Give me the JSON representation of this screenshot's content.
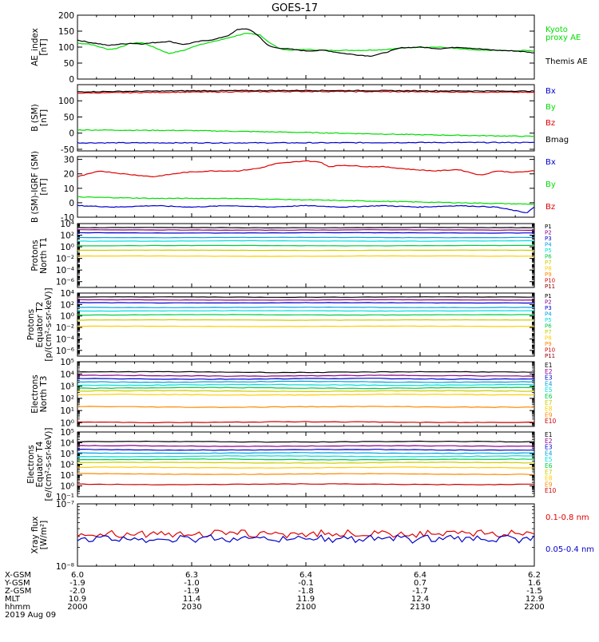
{
  "title": "GOES-17",
  "colors": {
    "black": "#000000",
    "red": "#e00000",
    "green": "#00dd00",
    "blue": "#0000cc",
    "bx": "#0000cc",
    "by": "#00dd00",
    "bz": "#e00000",
    "channels": [
      "#000000",
      "#8b008b",
      "#0000cc",
      "#00a0e0",
      "#00dddd",
      "#00cc44",
      "#cccc00",
      "#ffcc00",
      "#ff8800",
      "#cc0000",
      "#880000"
    ]
  },
  "chart_data": [
    {
      "id": "ae",
      "type": "line",
      "ylabel": [
        "AE_index",
        "[nT]"
      ],
      "ylim": [
        0,
        200
      ],
      "ticks": [
        0,
        50,
        100,
        150,
        200
      ],
      "tick_labels": [
        "0",
        "50",
        "100",
        "150",
        "200"
      ],
      "series": [
        {
          "name": "Kyoto proxy AE",
          "label_lines": [
            "Kyoto",
            "proxy AE"
          ],
          "color": "#00dd00",
          "x": [
            0,
            3,
            6,
            8,
            10,
            14,
            17,
            20,
            24,
            28,
            32,
            36,
            40,
            44,
            48,
            50,
            53,
            56,
            60,
            65,
            70,
            75,
            80,
            85,
            90,
            95,
            100,
            105,
            110,
            115,
            118,
            120
          ],
          "values": [
            112,
            110,
            100,
            93,
            95,
            112,
            114,
            100,
            80,
            90,
            108,
            118,
            130,
            143,
            138,
            118,
            95,
            90,
            93,
            90,
            90,
            90,
            92,
            97,
            100,
            100,
            95,
            90,
            90,
            88,
            90,
            88
          ]
        },
        {
          "name": "Themis AE",
          "label_lines": [
            "Themis AE"
          ],
          "color": "#000000",
          "x": [
            0,
            3,
            6,
            8,
            10,
            14,
            17,
            20,
            24,
            28,
            32,
            36,
            40,
            42,
            44,
            46,
            48,
            50,
            52,
            55,
            60,
            65,
            68,
            70,
            74,
            77,
            80,
            85,
            90,
            95,
            100,
            105,
            110,
            115,
            118,
            120
          ],
          "values": [
            122,
            115,
            110,
            105,
            108,
            112,
            110,
            114,
            118,
            108,
            118,
            124,
            138,
            155,
            158,
            150,
            130,
            105,
            98,
            95,
            88,
            90,
            84,
            80,
            75,
            72,
            80,
            98,
            100,
            95,
            100,
            95,
            90,
            88,
            85,
            82
          ]
        }
      ]
    },
    {
      "id": "b_sm",
      "type": "line",
      "ylabel": [
        "B (SM)",
        "[nT]"
      ],
      "ylim": [
        -55,
        150
      ],
      "ticks": [
        -50,
        0,
        50,
        100
      ],
      "tick_labels": [
        "-50",
        "0",
        "50",
        "100"
      ],
      "series": [
        {
          "name": "Bx",
          "color": "#0000cc",
          "x": [
            0,
            30,
            60,
            90,
            120
          ],
          "values": [
            -30,
            -30,
            -30,
            -29,
            -29
          ]
        },
        {
          "name": "By",
          "color": "#00dd00",
          "x": [
            0,
            30,
            60,
            90,
            120
          ],
          "values": [
            10,
            8,
            2,
            -5,
            -10
          ]
        },
        {
          "name": "Bz",
          "color": "#e00000",
          "x": [
            0,
            30,
            60,
            90,
            120
          ],
          "values": [
            124,
            127,
            129,
            128,
            126
          ]
        },
        {
          "name": "Bmag",
          "color": "#000000",
          "x": [
            0,
            30,
            60,
            90,
            120
          ],
          "values": [
            128,
            131,
            132,
            131,
            130
          ]
        }
      ]
    },
    {
      "id": "b_igrf",
      "type": "line",
      "ylabel": [
        "B (SM)-IGRF (SM)",
        "[nT]"
      ],
      "ylim": [
        -10,
        32
      ],
      "ticks": [
        -10,
        0,
        10,
        20,
        30
      ],
      "tick_labels": [
        "-10",
        "0",
        "10",
        "20",
        "30"
      ],
      "series": [
        {
          "name": "Bx",
          "color": "#0000cc",
          "x": [
            0,
            10,
            20,
            30,
            40,
            50,
            60,
            70,
            80,
            90,
            100,
            110,
            118,
            120
          ],
          "values": [
            -2,
            -3,
            -2,
            -3,
            -2,
            -3,
            -2,
            -3,
            -2,
            -3,
            -2,
            -3,
            -7,
            -3
          ]
        },
        {
          "name": "By",
          "color": "#00dd00",
          "x": [
            0,
            20,
            40,
            60,
            80,
            100,
            120
          ],
          "values": [
            4,
            3,
            3,
            2,
            1,
            0,
            -1
          ]
        },
        {
          "name": "Bz",
          "color": "#e00000",
          "x": [
            0,
            3,
            6,
            12,
            20,
            28,
            35,
            42,
            48,
            52,
            56,
            60,
            64,
            66,
            70,
            76,
            80,
            88,
            94,
            100,
            106,
            110,
            115,
            120
          ],
          "values": [
            18,
            20,
            22,
            20,
            18,
            21,
            22,
            22,
            24,
            27,
            28,
            29,
            28,
            25,
            26,
            25,
            25,
            23,
            22,
            23,
            19,
            22,
            21,
            22
          ]
        }
      ]
    },
    {
      "id": "protons_north",
      "type": "line",
      "log": true,
      "ylabel": [
        "Protons",
        "North T1"
      ],
      "ylim_exp": [
        -7,
        4
      ],
      "ticks_exp": [
        -6,
        -4,
        -2,
        0,
        2,
        4
      ],
      "tick_labels": [
        "10⁻⁶",
        "10⁻⁴",
        "10⁻²",
        "10⁰",
        "10²",
        "10⁴"
      ],
      "series": [
        {
          "name": "P1",
          "color": "#000000",
          "level_exp": 3.3
        },
        {
          "name": "P2",
          "color": "#8b008b",
          "level_exp": 2.9
        },
        {
          "name": "P3",
          "color": "#0000cc",
          "level_exp": 2.4
        },
        {
          "name": "P4",
          "color": "#00a0e0",
          "level_exp": 1.6
        },
        {
          "name": "P5",
          "color": "#00dddd",
          "level_exp": 1.0
        },
        {
          "name": "P6",
          "color": "#00cc44",
          "level_exp": 0.2
        },
        {
          "name": "P7",
          "color": "#cccc00",
          "level_exp": -0.6
        },
        {
          "name": "P8",
          "color": "#ffcc00",
          "level_exp": -1.6
        },
        {
          "name": "P9",
          "color": "#ff8800",
          "level_exp": -99
        },
        {
          "name": "P10",
          "color": "#cc0000",
          "level_exp": -99
        },
        {
          "name": "P11",
          "color": "#880000",
          "level_exp": -99
        }
      ]
    },
    {
      "id": "protons_equator",
      "type": "line",
      "log": true,
      "ylabel": [
        "Protons",
        "Equator T2",
        "[p/(cm²-s-sr-keV)]"
      ],
      "ylim_exp": [
        -7,
        4
      ],
      "ticks_exp": [
        -6,
        -4,
        -2,
        0,
        2,
        4
      ],
      "tick_labels": [
        "10⁻⁶",
        "10⁻⁴",
        "10⁻²",
        "10⁰",
        "10²",
        "10⁴"
      ],
      "series": [
        {
          "name": "P1",
          "color": "#000000",
          "level_exp": 3.3
        },
        {
          "name": "P2",
          "color": "#8b008b",
          "level_exp": 2.8
        },
        {
          "name": "P3",
          "color": "#0000cc",
          "level_exp": 2.3
        },
        {
          "name": "P4",
          "color": "#00a0e0",
          "level_exp": 1.5
        },
        {
          "name": "P5",
          "color": "#00dddd",
          "level_exp": 0.9
        },
        {
          "name": "P6",
          "color": "#00cc44",
          "level_exp": 0.2
        },
        {
          "name": "P7",
          "color": "#cccc00",
          "level_exp": -0.7
        },
        {
          "name": "P8",
          "color": "#ffcc00",
          "level_exp": -1.8
        },
        {
          "name": "P9",
          "color": "#ff8800",
          "level_exp": -99
        },
        {
          "name": "P10",
          "color": "#cc0000",
          "level_exp": -99
        },
        {
          "name": "P11",
          "color": "#880000",
          "level_exp": -99
        }
      ]
    },
    {
      "id": "electrons_north",
      "type": "line",
      "log": true,
      "ylabel": [
        "Electrons",
        "North T3"
      ],
      "ylim_exp": [
        -0.3,
        5
      ],
      "ticks_exp": [
        0,
        1,
        2,
        3,
        4,
        5
      ],
      "tick_labels": [
        "10⁰",
        "10¹",
        "10²",
        "10³",
        "10⁴",
        "10⁵"
      ],
      "series": [
        {
          "name": "E1",
          "color": "#000000",
          "level_exp": 4.15
        },
        {
          "name": "E2",
          "color": "#8b008b",
          "level_exp": 3.85
        },
        {
          "name": "E3",
          "color": "#0000cc",
          "level_exp": 3.6
        },
        {
          "name": "E4",
          "color": "#00a0e0",
          "level_exp": 3.35
        },
        {
          "name": "E5",
          "color": "#00dddd",
          "level_exp": 3.1
        },
        {
          "name": "E6",
          "color": "#00cc44",
          "level_exp": 2.85
        },
        {
          "name": "E7",
          "color": "#cccc00",
          "level_exp": 2.6
        },
        {
          "name": "E8",
          "color": "#ffcc00",
          "level_exp": 2.3
        },
        {
          "name": "E9",
          "color": "#ff8800",
          "level_exp": 1.3
        },
        {
          "name": "E10",
          "color": "#cc0000",
          "level_exp": 0.05
        }
      ]
    },
    {
      "id": "electrons_equator",
      "type": "line",
      "log": true,
      "ylabel": [
        "Electrons",
        "Equator T4",
        "[e/(cm²-s-sr-keV)]"
      ],
      "ylim_exp": [
        -1,
        5
      ],
      "ticks_exp": [
        -1,
        0,
        1,
        2,
        3,
        4,
        5
      ],
      "tick_labels": [
        "10⁻¹",
        "10⁰",
        "10¹",
        "10²",
        "10³",
        "10⁴",
        "10⁵"
      ],
      "series": [
        {
          "name": "E1",
          "color": "#000000",
          "level_exp": 4.1
        },
        {
          "name": "E2",
          "color": "#8b008b",
          "level_exp": 3.7
        },
        {
          "name": "E3",
          "color": "#0000cc",
          "level_exp": 3.35
        },
        {
          "name": "E4",
          "color": "#00a0e0",
          "level_exp": 3.05
        },
        {
          "name": "E5",
          "color": "#00dddd",
          "level_exp": 2.75
        },
        {
          "name": "E6",
          "color": "#00cc44",
          "level_exp": 2.45
        },
        {
          "name": "E7",
          "color": "#cccc00",
          "level_exp": 2.15
        },
        {
          "name": "E8",
          "color": "#ffcc00",
          "level_exp": 1.7
        },
        {
          "name": "E9",
          "color": "#ff8800",
          "level_exp": 1.1
        },
        {
          "name": "E10",
          "color": "#cc0000",
          "level_exp": 0.15
        }
      ]
    },
    {
      "id": "xray",
      "type": "line",
      "log": true,
      "ylabel": [
        "Xray flux",
        "[W/m²]"
      ],
      "ylim_exp": [
        -8,
        -7
      ],
      "ticks_exp": [
        -8,
        -7
      ],
      "tick_labels": [
        "10⁻⁸",
        "10⁻⁷"
      ],
      "series": [
        {
          "name": "0.1-0.8 nm",
          "color": "#e00000",
          "level_exp": -7.48
        },
        {
          "name": "0.05-0.4 nm",
          "color": "#0000cc",
          "level_exp": -7.56
        }
      ]
    }
  ],
  "time_axis": {
    "range": [
      0,
      120
    ],
    "ticks": [
      0,
      30,
      60,
      90,
      120
    ],
    "rows": [
      {
        "label": "X-GSM",
        "values": [
          "6.0",
          "6.3",
          "6.4",
          "6.4",
          "6.2"
        ]
      },
      {
        "label": "Y-GSM",
        "values": [
          "-1.9",
          "-1.0",
          "-0.1",
          "0.7",
          "1.6"
        ]
      },
      {
        "label": "Z-GSM",
        "values": [
          "-2.0",
          "-1.9",
          "-1.8",
          "-1.7",
          "-1.5"
        ]
      },
      {
        "label": "MLT",
        "values": [
          "10.9",
          "11.4",
          "11.9",
          "12.4",
          "12.9"
        ]
      },
      {
        "label": "hhmm",
        "values": [
          "2000",
          "2030",
          "2100",
          "2130",
          "2200"
        ]
      }
    ],
    "date": "2019 Aug 09"
  }
}
